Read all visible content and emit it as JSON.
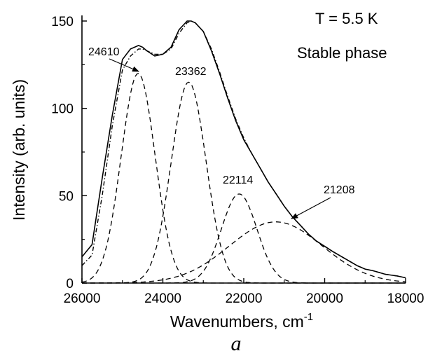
{
  "chart_data": {
    "type": "line",
    "xlabel": "Wavenumbers, cm",
    "xlabel_sup": "-1",
    "ylabel": "Intensity (arb. units)",
    "xlim": [
      26000,
      18000
    ],
    "ylim": [
      0,
      150
    ],
    "x_reversed": true,
    "xticks": [
      26000,
      24000,
      22000,
      20000,
      18000
    ],
    "yticks": [
      0,
      50,
      100,
      150
    ],
    "xtick_labels": [
      "26000",
      "24000",
      "22000",
      "20000",
      "18000"
    ],
    "ytick_labels": [
      "0",
      "50",
      "100",
      "150"
    ],
    "grid": false,
    "legend": "none",
    "annotations": {
      "temperature": "T = 5.5 K",
      "phase": "Stable phase",
      "panel_label": "a"
    },
    "series": [
      {
        "style": "solid",
        "x": [
          26000,
          25750,
          25500,
          25250,
          25000,
          24800,
          24600,
          24500,
          24400,
          24200,
          24000,
          23800,
          23600,
          23400,
          23300,
          23200,
          23000,
          22800,
          22600,
          22400,
          22200,
          22000,
          21800,
          21600,
          21400,
          21200,
          21000,
          20800,
          20600,
          20400,
          20200,
          20000,
          19800,
          19500,
          19200,
          19000,
          18800,
          18500,
          18200,
          18000
        ],
        "y": [
          15,
          22,
          60,
          96,
          128,
          134,
          136,
          135,
          133,
          130,
          131,
          135,
          145,
          150,
          150,
          149,
          144,
          133,
          120,
          106,
          93,
          82,
          74,
          66,
          58,
          51,
          44,
          38,
          33,
          28,
          24,
          21,
          18,
          14,
          10,
          8,
          7,
          5,
          4,
          3
        ]
      },
      {
        "style": "dash-dot",
        "x": [
          26000,
          25750,
          25500,
          25250,
          25000,
          24800,
          24600,
          24500,
          24400,
          24200,
          24000,
          23800,
          23600,
          23400,
          23300,
          23200,
          23000,
          22800,
          22600,
          22400,
          22200,
          22000,
          21800,
          21600,
          21400,
          21200,
          21000,
          20800,
          20600,
          20400,
          20200,
          20000,
          19800,
          19500,
          19200,
          19000,
          18800,
          18500,
          18200,
          18000
        ],
        "y": [
          10,
          16,
          50,
          90,
          122,
          130,
          134,
          134,
          133,
          131,
          131,
          134,
          143,
          149,
          150,
          149,
          144,
          134,
          121,
          107,
          94,
          83,
          74,
          66,
          58,
          51,
          44,
          38,
          33,
          28,
          24,
          21,
          18,
          14,
          10,
          8,
          7,
          5,
          4,
          3
        ]
      }
    ],
    "gaussians": [
      {
        "label": "24610",
        "center": 24610,
        "amplitude": 120,
        "sigma": 420
      },
      {
        "label": "23362",
        "center": 23362,
        "amplitude": 115,
        "sigma": 430
      },
      {
        "label": "22114",
        "center": 22114,
        "amplitude": 51,
        "sigma": 440
      },
      {
        "label": "21208",
        "center": 21208,
        "amplitude": 35,
        "sigma": 1150
      }
    ]
  }
}
